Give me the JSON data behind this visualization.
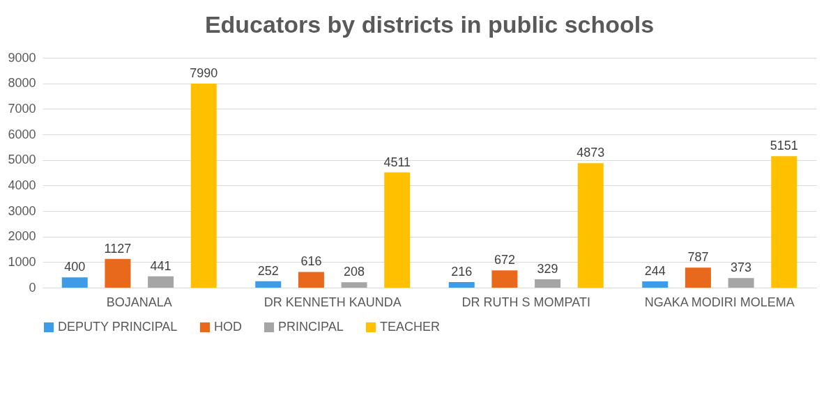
{
  "chart_data": {
    "type": "bar",
    "title": "Educators by districts in public schools",
    "categories": [
      "BOJANALA",
      "DR KENNETH KAUNDA",
      "DR RUTH S MOMPATI",
      "NGAKA MODIRI MOLEMA"
    ],
    "series": [
      {
        "name": "DEPUTY PRINCIPAL",
        "color": "#3f9be6",
        "values": [
          400,
          252,
          216,
          244
        ]
      },
      {
        "name": "HOD",
        "color": "#e8681c",
        "values": [
          1127,
          616,
          672,
          787
        ]
      },
      {
        "name": "PRINCIPAL",
        "color": "#a5a5a5",
        "values": [
          441,
          208,
          329,
          373
        ]
      },
      {
        "name": "TEACHER",
        "color": "#ffc000",
        "values": [
          7990,
          4511,
          4873,
          5151
        ]
      }
    ],
    "ylim": [
      0,
      9000
    ],
    "yticks": [
      0,
      1000,
      2000,
      3000,
      4000,
      5000,
      6000,
      7000,
      8000,
      9000
    ],
    "grid": "y",
    "legend": "bottom",
    "data_labels": true
  }
}
